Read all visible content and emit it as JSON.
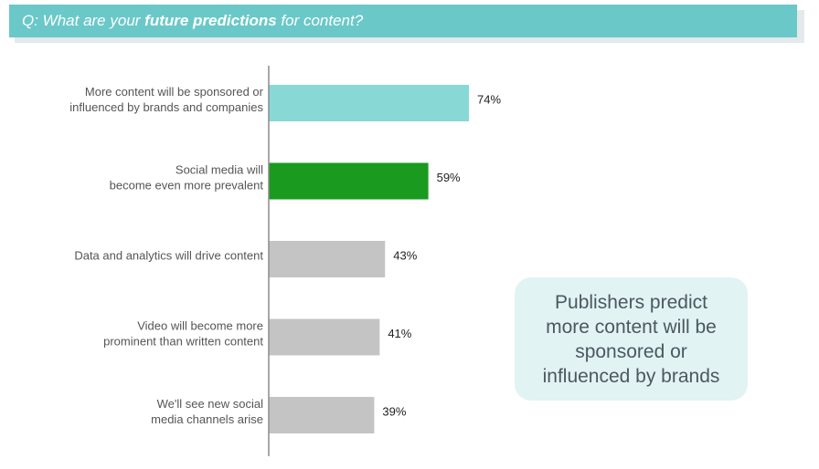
{
  "header": {
    "prefix": "Q: What are your ",
    "emphasis": "future predictions",
    "suffix": " for content?"
  },
  "chart_data": {
    "type": "bar",
    "orientation": "horizontal",
    "categories": [
      [
        "More content will be sponsored or",
        "influenced by brands and companies"
      ],
      [
        "Social media will",
        "become even more prevalent"
      ],
      [
        "Data and analytics will drive content"
      ],
      [
        "Video will become more",
        "prominent than written content"
      ],
      [
        "We'll see new social",
        "media channels arise"
      ]
    ],
    "values": [
      74,
      59,
      43,
      41,
      39
    ],
    "value_labels": [
      "74%",
      "59%",
      "43%",
      "41%",
      "39%"
    ],
    "colors": [
      "#88d8d6",
      "#1a9a1f",
      "#c4c4c4",
      "#c4c4c4",
      "#c4c4c4"
    ],
    "title": "",
    "xlabel": "",
    "ylabel": "",
    "xlim": [
      0,
      100
    ],
    "grid": false
  },
  "callout": {
    "text": "Publishers predict more content will be sponsored or influenced by brands"
  }
}
